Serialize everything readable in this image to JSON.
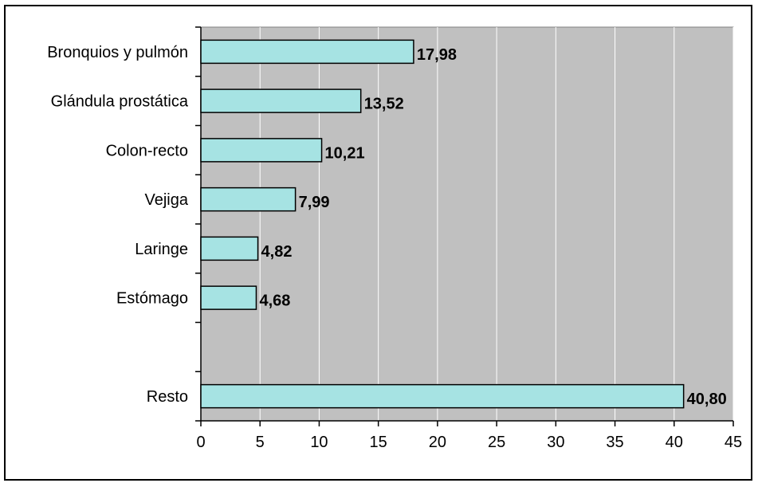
{
  "chart_data": {
    "type": "bar",
    "orientation": "horizontal",
    "categories": [
      "Bronquios y pulmón",
      "Glándula prostática",
      "Colon-recto",
      "Vejiga",
      "Laringe",
      "Estómago",
      "",
      "Resto"
    ],
    "values": [
      17.98,
      13.52,
      10.21,
      7.99,
      4.82,
      4.68,
      null,
      40.8
    ],
    "data_labels": [
      "17,98",
      "13,52",
      "10,21",
      "7,99",
      "4,82",
      "4,68",
      "",
      "40,80"
    ],
    "xlim": [
      0,
      45
    ],
    "xticks": [
      0,
      5,
      10,
      15,
      20,
      25,
      30,
      35,
      40,
      45
    ],
    "xtick_labels": [
      "0",
      "5",
      "10",
      "15",
      "20",
      "25",
      "30",
      "35",
      "40",
      "45"
    ],
    "grid": true,
    "colors": {
      "bar_fill": "#a6e3e3",
      "bar_stroke": "#000000",
      "plot_background": "#c0c0c0",
      "gridline": "#ffffff"
    }
  }
}
